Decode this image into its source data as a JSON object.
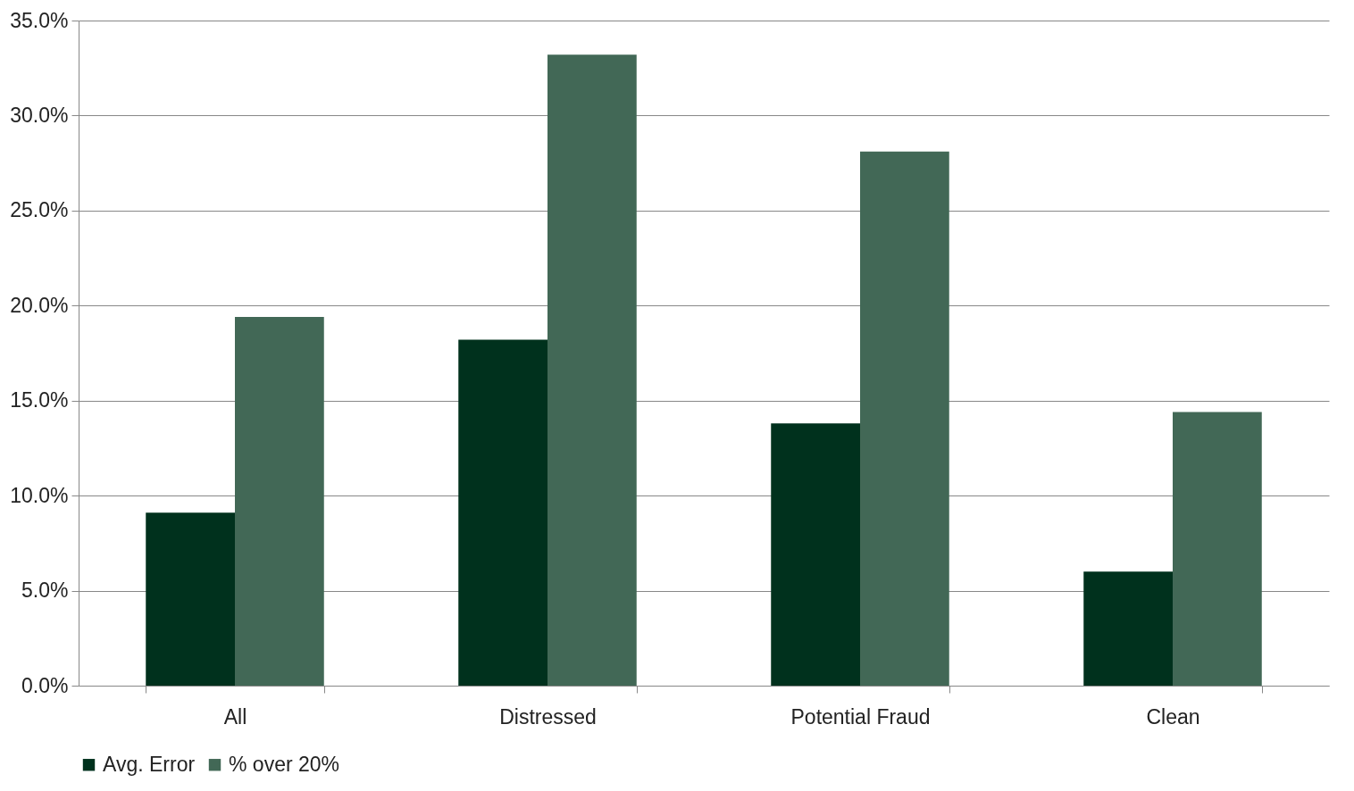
{
  "chart_data": {
    "type": "bar",
    "categories": [
      "All",
      "Distressed",
      "Potential Fraud",
      "Clean"
    ],
    "series": [
      {
        "name": "Avg. Error",
        "color": "#00311d",
        "values": [
          9.1,
          18.2,
          13.8,
          6.0
        ]
      },
      {
        "name": "% over 20%",
        "color": "#426856",
        "values": [
          19.4,
          33.2,
          28.1,
          14.4
        ]
      }
    ],
    "ylim": [
      0,
      35
    ],
    "yticks": [
      {
        "value": 0,
        "label": "0.0%"
      },
      {
        "value": 5,
        "label": "5.0%"
      },
      {
        "value": 10,
        "label": "10.0%"
      },
      {
        "value": 15,
        "label": "15.0%"
      },
      {
        "value": 20,
        "label": "20.0%"
      },
      {
        "value": 25,
        "label": "25.0%"
      },
      {
        "value": 30,
        "label": "30.0%"
      },
      {
        "value": 35,
        "label": "35.0%"
      }
    ],
    "grid": "y",
    "legend": "bottom"
  }
}
